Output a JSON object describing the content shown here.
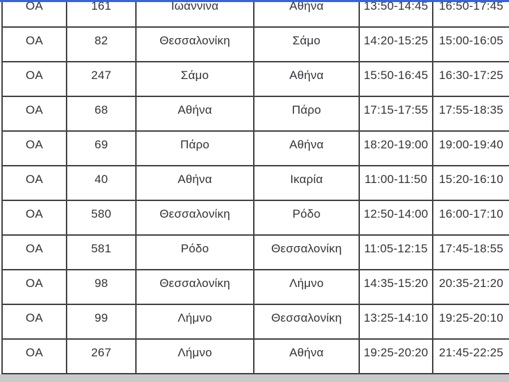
{
  "window": {
    "top_accent_color": "#3b63d9",
    "bottom_strip_color": "#c9c9c9"
  },
  "flight_table": {
    "border_color": "#424242",
    "text_color": "#32323a",
    "column_keys": [
      "airline",
      "flight_number",
      "origin",
      "destination",
      "time_1",
      "time_2"
    ],
    "rows": [
      {
        "airline": "OA",
        "flight_number": "161",
        "origin": "Ιωάννινα",
        "destination": "Αθήνα",
        "time_1": "13:50-14:45",
        "time_2": "16:50-17:45"
      },
      {
        "airline": "OA",
        "flight_number": "82",
        "origin": "Θεσσαλονίκη",
        "destination": "Σάμο",
        "time_1": "14:20-15:25",
        "time_2": "15:00-16:05"
      },
      {
        "airline": "OA",
        "flight_number": "247",
        "origin": "Σάμο",
        "destination": "Αθήνα",
        "time_1": "15:50-16:45",
        "time_2": "16:30-17:25"
      },
      {
        "airline": "OA",
        "flight_number": "68",
        "origin": "Αθήνα",
        "destination": "Πάρο",
        "time_1": "17:15-17:55",
        "time_2": "17:55-18:35"
      },
      {
        "airline": "OA",
        "flight_number": "69",
        "origin": "Πάρο",
        "destination": "Αθήνα",
        "time_1": "18:20-19:00",
        "time_2": "19:00-19:40"
      },
      {
        "airline": "OA",
        "flight_number": "40",
        "origin": "Αθήνα",
        "destination": "Ικαρία",
        "time_1": "11:00-11:50",
        "time_2": "15:20-16:10"
      },
      {
        "airline": "OA",
        "flight_number": "580",
        "origin": "Θεσσαλονίκη",
        "destination": "Ρόδο",
        "time_1": "12:50-14:00",
        "time_2": "16:00-17:10"
      },
      {
        "airline": "OA",
        "flight_number": "581",
        "origin": "Ρόδο",
        "destination": "Θεσσαλονίκη",
        "time_1": "11:05-12:15",
        "time_2": "17:45-18:55"
      },
      {
        "airline": "OA",
        "flight_number": "98",
        "origin": "Θεσσαλονίκη",
        "destination": "Λήμνο",
        "time_1": "14:35-15:20",
        "time_2": "20:35-21:20"
      },
      {
        "airline": "OA",
        "flight_number": "99",
        "origin": "Λήμνο",
        "destination": "Θεσσαλονίκη",
        "time_1": "13:25-14:10",
        "time_2": "19:25-20:10"
      },
      {
        "airline": "OA",
        "flight_number": "267",
        "origin": "Λήμνο",
        "destination": "Αθήνα",
        "time_1": "19:25-20:20",
        "time_2": "21:45-22:25"
      }
    ]
  }
}
